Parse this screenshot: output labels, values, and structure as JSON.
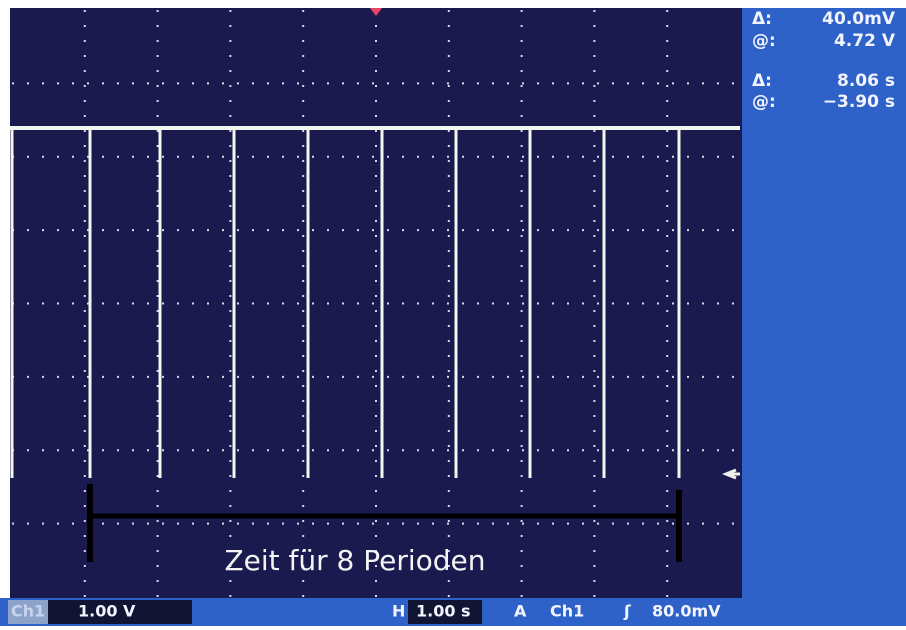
{
  "screen": {
    "annotation": "Zeit für 8 Perioden"
  },
  "readouts": [
    {
      "delta_label": "Δ:",
      "delta": "40.0mV",
      "at_label": "@:",
      "at": "4.72 V"
    },
    {
      "delta_label": "Δ:",
      "delta": "8.06 s",
      "at_label": "@:",
      "at": "−3.90 s"
    }
  ],
  "status_bar": {
    "channel": "Ch1",
    "volts_per_div": "1.00 V",
    "horizontal_label": "H",
    "time_per_div": "1.00 s",
    "trigger_label": "A",
    "trigger_source": "Ch1",
    "trigger_slope": "ʃ",
    "trigger_level": "80.0mV"
  }
}
